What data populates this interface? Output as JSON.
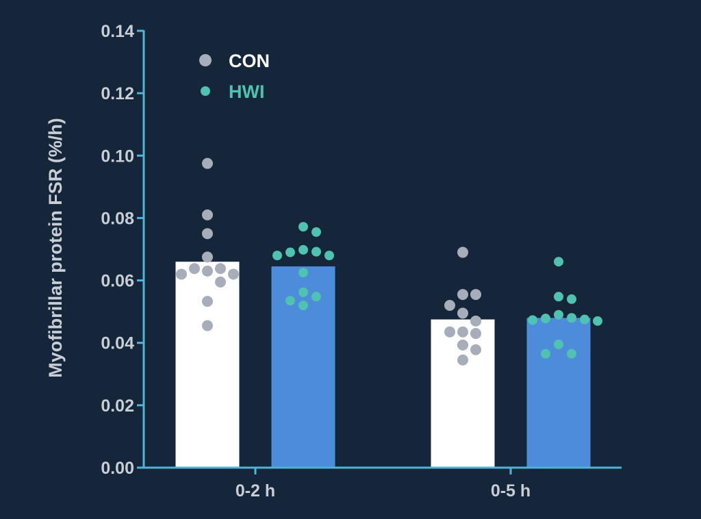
{
  "colors": {
    "background": "#16263a",
    "axis": "#4fb4d8",
    "tick_label": "#c8cdd6",
    "con_bar": "#ffffff",
    "hwi_bar": "#4d8cdb",
    "con_point": "#a7aeb9",
    "hwi_point": "#4fc2b2",
    "con_legend_text": "#ffffff",
    "hwi_legend_text": "#4fc2b2"
  },
  "chart_data": {
    "type": "bar",
    "title": "",
    "xlabel": "",
    "ylabel": "Myofibrillar protein FSR (%/h)",
    "ylim": [
      0,
      0.14
    ],
    "yticks": [
      "0.00",
      "0.02",
      "0.04",
      "0.06",
      "0.08",
      "0.10",
      "0.12",
      "0.14"
    ],
    "categories": [
      "0-2 h",
      "0-5 h"
    ],
    "legend_position": "top-left",
    "series": [
      {
        "name": "CON",
        "values": [
          0.066,
          0.0475
        ],
        "points": [
          [
            0.0975,
            0.081,
            0.075,
            0.0675,
            0.0638,
            0.0638,
            0.063,
            0.062,
            0.062,
            0.0595,
            0.0533,
            0.0455
          ],
          [
            0.069,
            0.0555,
            0.0555,
            0.052,
            0.0495,
            0.047,
            0.0435,
            0.0435,
            0.043,
            0.0393,
            0.0378,
            0.0345
          ]
        ]
      },
      {
        "name": "HWI",
        "values": [
          0.0645,
          0.048
        ],
        "points": [
          [
            0.0772,
            0.0755,
            0.0698,
            0.0692,
            0.069,
            0.068,
            0.068,
            0.0625,
            0.0562,
            0.0548,
            0.0535,
            0.052
          ],
          [
            0.066,
            0.0548,
            0.054,
            0.049,
            0.048,
            0.0478,
            0.0475,
            0.0473,
            0.047,
            0.0395,
            0.0365,
            0.0365
          ]
        ]
      }
    ]
  }
}
